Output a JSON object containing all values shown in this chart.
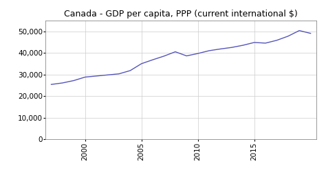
{
  "title": "Canada - GDP per capita, PPP (current international $)",
  "years": [
    1997,
    1998,
    1999,
    2000,
    2001,
    2002,
    2003,
    2004,
    2005,
    2006,
    2007,
    2008,
    2009,
    2010,
    2011,
    2012,
    2013,
    2014,
    2015,
    2016,
    2017,
    2018,
    2019,
    2020
  ],
  "values": [
    25400,
    26100,
    27200,
    28800,
    29300,
    29800,
    30300,
    31800,
    35000,
    36800,
    38500,
    40500,
    38600,
    39700,
    41000,
    41800,
    42500,
    43500,
    44800,
    44500,
    45800,
    47700,
    50300,
    49000
  ],
  "line_color": "#5555bb",
  "background_color": "#ffffff",
  "grid_color": "#cccccc",
  "ylim": [
    0,
    55000
  ],
  "yticks": [
    0,
    10000,
    20000,
    30000,
    40000,
    50000
  ],
  "xlim": [
    1996.5,
    2020.5
  ],
  "xticks": [
    2000,
    2005,
    2010,
    2015
  ],
  "title_fontsize": 9,
  "tick_fontsize": 7.5
}
